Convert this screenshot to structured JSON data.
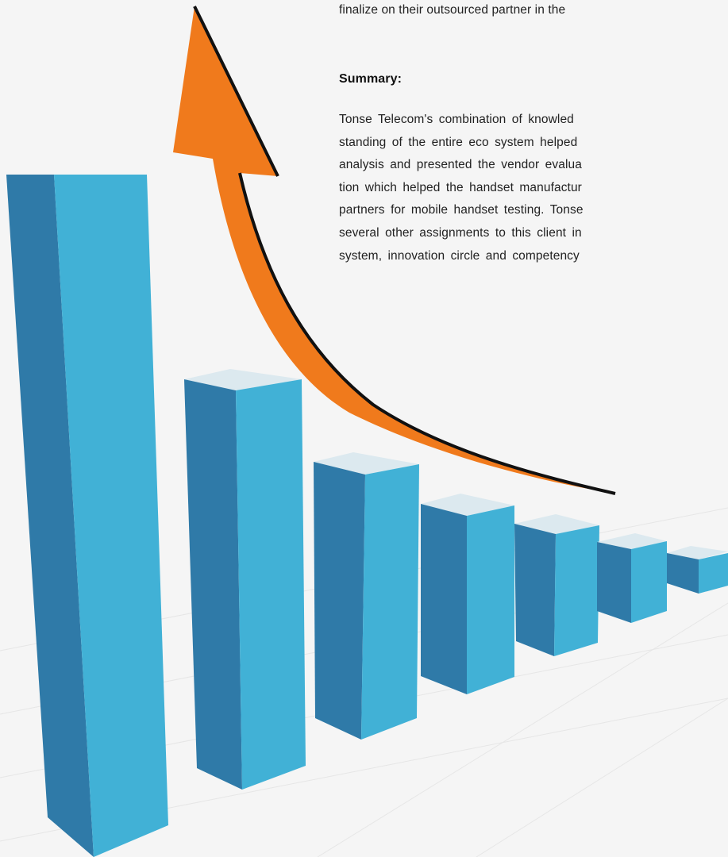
{
  "intro": {
    "text": "finalize on their outsourced partner in the"
  },
  "summary": {
    "heading": "Summary:",
    "lines": [
      "Tonse Telecom's combination of knowled",
      "standing of the entire eco system helped",
      "analysis and presented the vendor evalua",
      "tion which helped the handset manufactur",
      "partners for mobile handset testing. Tonse",
      "several other assignments to this client in",
      "system, innovation circle and competency"
    ]
  }
}
